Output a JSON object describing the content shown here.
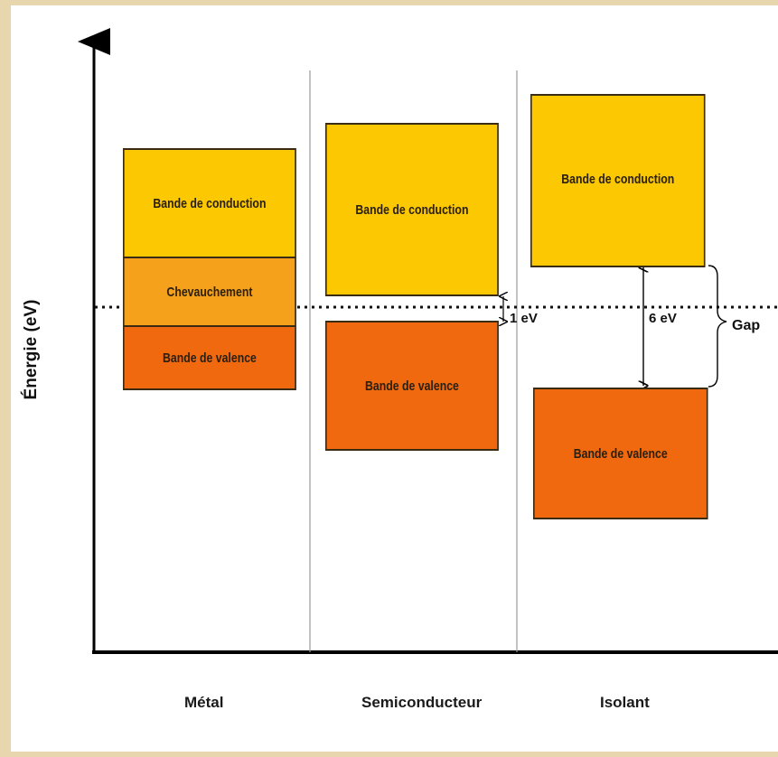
{
  "y_axis_label": "Énergie (eV)",
  "columns": [
    {
      "label": "Métal",
      "bands": [
        {
          "label": "Bande de conduction",
          "type": "conduction"
        },
        {
          "label": "Chevauchement",
          "type": "overlap"
        },
        {
          "label": "Bande de valence",
          "type": "valence"
        }
      ]
    },
    {
      "label": "Semiconducteur",
      "bands": [
        {
          "label": "Bande de conduction",
          "type": "conduction"
        },
        {
          "label": "Bande de valence",
          "type": "valence"
        }
      ],
      "gap_label": "1 eV"
    },
    {
      "label": "Isolant",
      "bands": [
        {
          "label": "Bande de conduction",
          "type": "conduction"
        },
        {
          "label": "Bande de valence",
          "type": "valence"
        }
      ],
      "gap_label": "6 eV",
      "brace_label": "Gap"
    }
  ],
  "colors": {
    "conduction": "#fbc802",
    "overlap": "#f5a11b",
    "valence": "#f1690f"
  }
}
